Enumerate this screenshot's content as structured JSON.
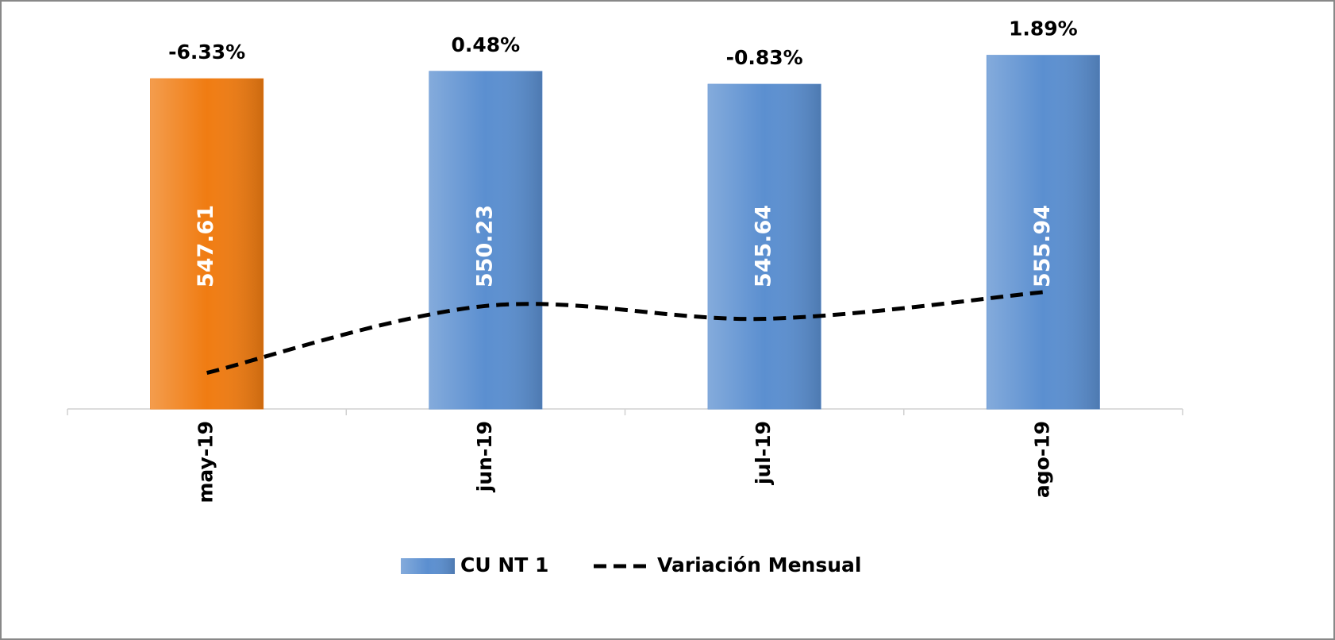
{
  "chart_data": {
    "type": "bar",
    "categories": [
      "may-19",
      "jun-19",
      "jul-19",
      "ago-19"
    ],
    "series": [
      {
        "name": "CU  NT 1",
        "color": "#5b8fd0",
        "colors": [
          "#f07c12",
          "#5b8fd0",
          "#5b8fd0",
          "#5b8fd0"
        ],
        "values": [
          547.61,
          550.23,
          545.64,
          555.94
        ]
      },
      {
        "name": "Variación Mensual",
        "type": "line",
        "axis": "y2",
        "color": "#000000",
        "values": [
          -6.33,
          0.48,
          -0.83,
          1.89
        ],
        "value_labels": [
          "-6.33%",
          "0.48%",
          "-0.83%",
          "1.89%"
        ]
      }
    ],
    "ylim": [
      430,
      570
    ],
    "y2lim": [
      -10,
      30
    ],
    "legend": "bottom"
  }
}
